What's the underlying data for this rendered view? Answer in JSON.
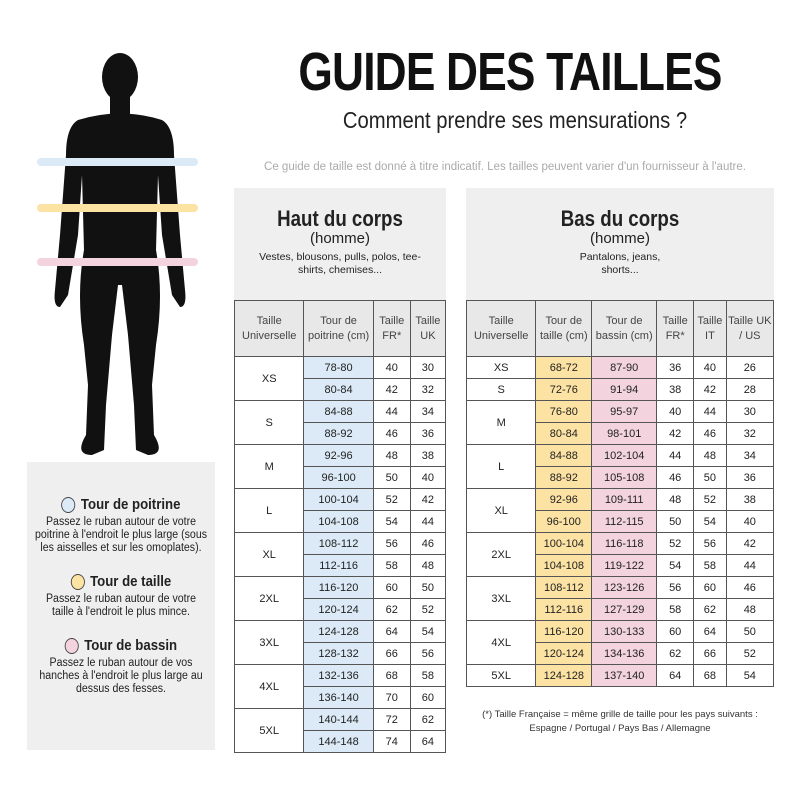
{
  "header": {
    "title": "GUIDE DES TAILLES",
    "subtitle": "Comment prendre ses mensurations ?",
    "note": "Ce guide de taille est donné à titre indicatif. Les tailles peuvent varier d'un fournisseur à l'autre."
  },
  "colors": {
    "chest": "#dbeaf6",
    "waist": "#fde3a3",
    "hips": "#f3d4de",
    "header_bg": "#e8e8e8"
  },
  "legend": [
    {
      "title": "Tour de poitrine",
      "text": "Passez le ruban autour de votre poitrine à l'endroit le plus large (sous les aisselles et sur les omoplates).",
      "color": "#dbeaf6"
    },
    {
      "title": "Tour de taille",
      "text": "Passez le ruban autour de votre taille à l'endroit le plus mince.",
      "color": "#fde3a3"
    },
    {
      "title": "Tour de bassin",
      "text": "Passez le ruban autour de vos hanches à l'endroit le plus large au dessus des fesses.",
      "color": "#f3d4de"
    }
  ],
  "top": {
    "title": "Haut du corps",
    "sub": "(homme)",
    "desc": "Vestes, blousons, pulls, polos, tee-shirts, chemises...",
    "columns": [
      "Taille Universelle",
      "Tour de poitrine (cm)",
      "Taille FR*",
      "Taille UK"
    ],
    "groups": [
      {
        "size": "XS",
        "rows": [
          [
            "78-80",
            "40",
            "30"
          ],
          [
            "80-84",
            "42",
            "32"
          ]
        ]
      },
      {
        "size": "S",
        "rows": [
          [
            "84-88",
            "44",
            "34"
          ],
          [
            "88-92",
            "46",
            "36"
          ]
        ]
      },
      {
        "size": "M",
        "rows": [
          [
            "92-96",
            "48",
            "38"
          ],
          [
            "96-100",
            "50",
            "40"
          ]
        ]
      },
      {
        "size": "L",
        "rows": [
          [
            "100-104",
            "52",
            "42"
          ],
          [
            "104-108",
            "54",
            "44"
          ]
        ]
      },
      {
        "size": "XL",
        "rows": [
          [
            "108-112",
            "56",
            "46"
          ],
          [
            "112-116",
            "58",
            "48"
          ]
        ]
      },
      {
        "size": "2XL",
        "rows": [
          [
            "116-120",
            "60",
            "50"
          ],
          [
            "120-124",
            "62",
            "52"
          ]
        ]
      },
      {
        "size": "3XL",
        "rows": [
          [
            "124-128",
            "64",
            "54"
          ],
          [
            "128-132",
            "66",
            "56"
          ]
        ]
      },
      {
        "size": "4XL",
        "rows": [
          [
            "132-136",
            "68",
            "58"
          ],
          [
            "136-140",
            "70",
            "60"
          ]
        ]
      },
      {
        "size": "5XL",
        "rows": [
          [
            "140-144",
            "72",
            "62"
          ],
          [
            "144-148",
            "74",
            "64"
          ]
        ]
      }
    ]
  },
  "bottom": {
    "title": "Bas du corps",
    "sub": "(homme)",
    "desc": "Pantalons, jeans, shorts...",
    "columns": [
      "Taille Universelle",
      "Tour de taille (cm)",
      "Tour de bassin (cm)",
      "Taille FR*",
      "Taille IT",
      "Taille UK / US"
    ],
    "groups": [
      {
        "size": "XS",
        "rows": [
          [
            "68-72",
            "87-90",
            "36",
            "40",
            "26"
          ]
        ]
      },
      {
        "size": "S",
        "rows": [
          [
            "72-76",
            "91-94",
            "38",
            "42",
            "28"
          ]
        ]
      },
      {
        "size": "M",
        "rows": [
          [
            "76-80",
            "95-97",
            "40",
            "44",
            "30"
          ],
          [
            "80-84",
            "98-101",
            "42",
            "46",
            "32"
          ]
        ]
      },
      {
        "size": "L",
        "rows": [
          [
            "84-88",
            "102-104",
            "44",
            "48",
            "34"
          ],
          [
            "88-92",
            "105-108",
            "46",
            "50",
            "36"
          ]
        ]
      },
      {
        "size": "XL",
        "rows": [
          [
            "92-96",
            "109-111",
            "48",
            "52",
            "38"
          ],
          [
            "96-100",
            "112-115",
            "50",
            "54",
            "40"
          ]
        ]
      },
      {
        "size": "2XL",
        "rows": [
          [
            "100-104",
            "116-118",
            "52",
            "56",
            "42"
          ],
          [
            "104-108",
            "119-122",
            "54",
            "58",
            "44"
          ]
        ]
      },
      {
        "size": "3XL",
        "rows": [
          [
            "108-112",
            "123-126",
            "56",
            "60",
            "46"
          ],
          [
            "112-116",
            "127-129",
            "58",
            "62",
            "48"
          ]
        ]
      },
      {
        "size": "4XL",
        "rows": [
          [
            "116-120",
            "130-133",
            "60",
            "64",
            "50"
          ],
          [
            "120-124",
            "134-136",
            "62",
            "66",
            "52"
          ]
        ]
      },
      {
        "size": "5XL",
        "rows": [
          [
            "124-128",
            "137-140",
            "64",
            "68",
            "54"
          ]
        ]
      }
    ]
  },
  "footnote": {
    "line1": "(*) Taille Française = même grille de taille pour les pays suivants :",
    "line2": "Espagne / Portugal / Pays Bas / Allemagne"
  }
}
